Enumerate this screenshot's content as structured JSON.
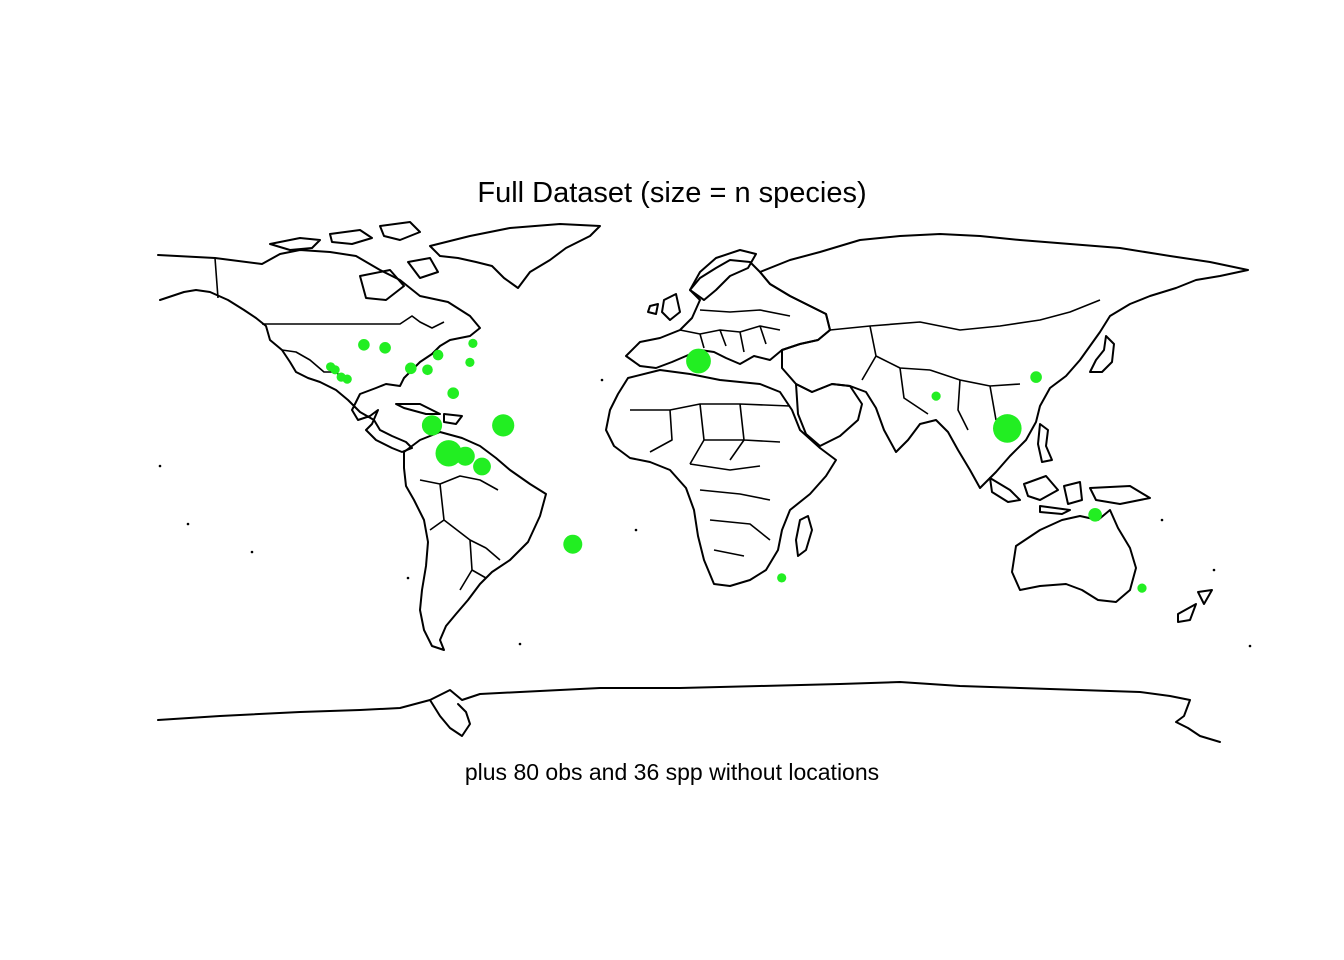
{
  "title": "Full Dataset (size = n species)",
  "subtitle": "plus 80  obs and 36 spp without locations",
  "colors": {
    "point": "#22ee22",
    "outline": "#000000",
    "background": "#ffffff"
  },
  "map_projection": "equirectangular",
  "chart_data": {
    "type": "scatter",
    "title": "Full Dataset (size = n species)",
    "annotation": "plus 80  obs and 36 spp without locations",
    "xlim": [
      -180,
      180
    ],
    "ylim": [
      -90,
      84
    ],
    "size_variable": "n species",
    "points": [
      {
        "lon": -123.0,
        "lat": 38.0,
        "size": 1
      },
      {
        "lon": -121.5,
        "lat": 37.0,
        "size": 1
      },
      {
        "lon": -119.5,
        "lat": 34.5,
        "size": 1
      },
      {
        "lon": -117.5,
        "lat": 33.8,
        "size": 1
      },
      {
        "lon": -112.0,
        "lat": 45.5,
        "size": 2
      },
      {
        "lon": -105.0,
        "lat": 44.5,
        "size": 2
      },
      {
        "lon": -96.5,
        "lat": 37.5,
        "size": 2
      },
      {
        "lon": -91.0,
        "lat": 37.0,
        "size": 1.5
      },
      {
        "lon": -87.5,
        "lat": 42.0,
        "size": 1.5
      },
      {
        "lon": -82.5,
        "lat": 29.0,
        "size": 2
      },
      {
        "lon": -77.0,
        "lat": 39.5,
        "size": 1
      },
      {
        "lon": -76.0,
        "lat": 46.0,
        "size": 1
      },
      {
        "lon": -89.5,
        "lat": 18.0,
        "size": 8
      },
      {
        "lon": -84.0,
        "lat": 8.5,
        "size": 15
      },
      {
        "lon": -78.5,
        "lat": 7.5,
        "size": 7
      },
      {
        "lon": -66.0,
        "lat": 18.0,
        "size": 10
      },
      {
        "lon": -73.0,
        "lat": 4.0,
        "size": 6
      },
      {
        "lon": -43.0,
        "lat": -22.5,
        "size": 7
      },
      {
        "lon": -1.5,
        "lat": 40.0,
        "size": 13
      },
      {
        "lon": 26.0,
        "lat": -34.0,
        "size": 1
      },
      {
        "lon": 77.0,
        "lat": 28.0,
        "size": 1
      },
      {
        "lon": 100.5,
        "lat": 17.0,
        "size": 18
      },
      {
        "lon": 110.0,
        "lat": 34.5,
        "size": 2
      },
      {
        "lon": 129.5,
        "lat": -12.5,
        "size": 3
      },
      {
        "lon": 145.0,
        "lat": -37.5,
        "size": 1
      }
    ]
  }
}
